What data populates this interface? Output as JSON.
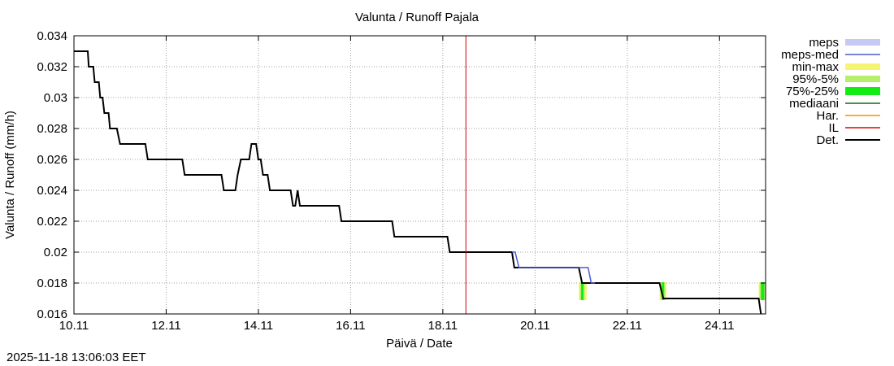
{
  "timestamp": "2025-11-18 13:06:03 EET",
  "chart_data": {
    "type": "line",
    "title": "Valunta / Runoff  Pajala",
    "xlabel": "Päivä / Date",
    "ylabel": "Valunta / Runoff (mm/h)",
    "xlim": [
      0,
      15
    ],
    "ylim": [
      0.016,
      0.034
    ],
    "yticks": [
      0.016,
      0.018,
      0.02,
      0.022,
      0.024,
      0.026,
      0.028,
      0.03,
      0.032,
      0.034
    ],
    "ytick_labels": [
      "0.016",
      "0.018",
      "0.02",
      "0.022",
      "0.024",
      "0.026",
      "0.028",
      "0.03",
      "0.032",
      "0.034"
    ],
    "xticks": [
      0,
      2,
      4,
      6,
      8,
      10,
      12,
      14
    ],
    "xtick_labels": [
      "10.11",
      "12.11",
      "14.11",
      "16.11",
      "18.11",
      "20.11",
      "22.11",
      "24.11"
    ],
    "grid": true,
    "legend_position": "right",
    "current_time_line_x": 8.5,
    "colors": {
      "meps": "#c8c8f5",
      "meps_med": "#4b5ad2",
      "min_max": "#f5f573",
      "p95_5": "#b4f06e",
      "p75_25": "#14eb14",
      "mediaani": "#0a6e0a",
      "har": "#ff8c00",
      "il": "#e60000",
      "det": "#000000",
      "now_line": "#cc0000"
    },
    "legend": [
      {
        "key": "meps",
        "label": "meps",
        "kind": "band"
      },
      {
        "key": "meps_med",
        "label": "meps-med",
        "kind": "line"
      },
      {
        "key": "min_max",
        "label": "min-max",
        "kind": "band"
      },
      {
        "key": "p95_5",
        "label": "95%-5%",
        "kind": "band"
      },
      {
        "key": "p75_25",
        "label": "75%-25%",
        "kind": "thickband"
      },
      {
        "key": "mediaani",
        "label": "mediaani",
        "kind": "line"
      },
      {
        "key": "har",
        "label": "Har.",
        "kind": "line"
      },
      {
        "key": "il",
        "label": "IL",
        "kind": "line"
      },
      {
        "key": "det",
        "label": "Det.",
        "kind": "line"
      }
    ],
    "series": [
      {
        "key": "det",
        "points": [
          [
            0.0,
            0.033
          ],
          [
            0.3,
            0.033
          ],
          [
            0.32,
            0.032
          ],
          [
            0.42,
            0.032
          ],
          [
            0.45,
            0.031
          ],
          [
            0.54,
            0.031
          ],
          [
            0.57,
            0.03
          ],
          [
            0.62,
            0.03
          ],
          [
            0.66,
            0.029
          ],
          [
            0.75,
            0.029
          ],
          [
            0.78,
            0.028
          ],
          [
            0.93,
            0.028
          ],
          [
            1.0,
            0.027
          ],
          [
            1.55,
            0.027
          ],
          [
            1.6,
            0.026
          ],
          [
            2.35,
            0.026
          ],
          [
            2.4,
            0.025
          ],
          [
            3.2,
            0.025
          ],
          [
            3.25,
            0.024
          ],
          [
            3.5,
            0.024
          ],
          [
            3.55,
            0.025
          ],
          [
            3.62,
            0.026
          ],
          [
            3.8,
            0.026
          ],
          [
            3.85,
            0.027
          ],
          [
            3.95,
            0.027
          ],
          [
            4.0,
            0.026
          ],
          [
            4.05,
            0.026
          ],
          [
            4.1,
            0.025
          ],
          [
            4.2,
            0.025
          ],
          [
            4.25,
            0.024
          ],
          [
            4.7,
            0.024
          ],
          [
            4.75,
            0.023
          ],
          [
            4.8,
            0.023
          ],
          [
            4.85,
            0.024
          ],
          [
            4.9,
            0.023
          ],
          [
            5.75,
            0.023
          ],
          [
            5.8,
            0.022
          ],
          [
            6.9,
            0.022
          ],
          [
            6.95,
            0.021
          ],
          [
            8.1,
            0.021
          ],
          [
            8.15,
            0.02
          ],
          [
            9.5,
            0.02
          ],
          [
            9.55,
            0.019
          ],
          [
            10.95,
            0.019
          ],
          [
            11.02,
            0.018
          ],
          [
            12.7,
            0.018
          ],
          [
            12.78,
            0.017
          ],
          [
            14.85,
            0.017
          ],
          [
            14.9,
            0.016
          ]
        ]
      },
      {
        "key": "meps_med",
        "points": [
          [
            9.5,
            0.02
          ],
          [
            9.57,
            0.02
          ],
          [
            9.65,
            0.019
          ],
          [
            11.15,
            0.019
          ],
          [
            11.22,
            0.018
          ],
          [
            11.3,
            0.018
          ]
        ]
      }
    ],
    "bands": [
      {
        "key": "min_max",
        "steps": [
          [
            10.95,
            11.12
          ],
          [
            12.7,
            12.85
          ],
          [
            14.85,
            15.0
          ]
        ]
      },
      {
        "key": "p95_5",
        "steps": [
          [
            10.97,
            11.08
          ],
          [
            12.72,
            12.82
          ],
          [
            14.87,
            15.0
          ]
        ]
      },
      {
        "key": "p75_25",
        "steps": [
          [
            11.0,
            11.05
          ],
          [
            12.75,
            12.8
          ],
          [
            14.9,
            14.97
          ]
        ]
      }
    ]
  }
}
